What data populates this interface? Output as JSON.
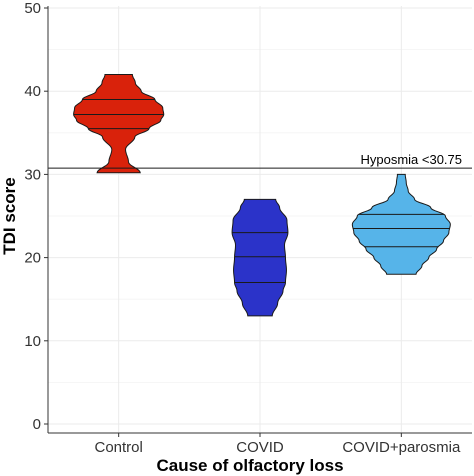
{
  "chart_data": {
    "type": "violin",
    "title": "",
    "xlabel": "Cause of olfactory loss",
    "ylabel": "TDI score",
    "ylim": [
      0,
      50
    ],
    "yticks": [
      0,
      10,
      20,
      30,
      40,
      50
    ],
    "grid": true,
    "legend": "none",
    "reference_line": {
      "value": 30.75,
      "label": "Hyposmia <30.75"
    },
    "series": [
      {
        "category": "Control",
        "color": "#d9220b",
        "min": 30.2,
        "max": 42,
        "quantiles": [
          35.5,
          37.2,
          39
        ],
        "density": [
          [
            30.2,
            0.44
          ],
          [
            31.5,
            0.2
          ],
          [
            33.0,
            0.14
          ],
          [
            34.5,
            0.33
          ],
          [
            35.5,
            0.62
          ],
          [
            36.5,
            0.86
          ],
          [
            37.2,
            0.92
          ],
          [
            38.0,
            0.9
          ],
          [
            39.0,
            0.74
          ],
          [
            40.0,
            0.46
          ],
          [
            41.0,
            0.34
          ],
          [
            42.0,
            0.28
          ]
        ]
      },
      {
        "category": "COVID",
        "color": "#2b33c9",
        "min": 13,
        "max": 27,
        "quantiles": [
          17,
          20.1,
          23
        ],
        "density": [
          [
            13,
            0.25
          ],
          [
            14.5,
            0.36
          ],
          [
            16.0,
            0.47
          ],
          [
            17.0,
            0.52
          ],
          [
            18.5,
            0.54
          ],
          [
            20.0,
            0.52
          ],
          [
            21.5,
            0.5
          ],
          [
            23.0,
            0.57
          ],
          [
            24.5,
            0.55
          ],
          [
            26.0,
            0.4
          ],
          [
            27.0,
            0.32
          ]
        ]
      },
      {
        "category": "COVID+parosmia",
        "color": "#56b4e9",
        "min": 18,
        "max": 30,
        "quantiles": [
          21.3,
          23.5,
          25.2
        ],
        "density": [
          [
            18,
            0.3
          ],
          [
            19.0,
            0.42
          ],
          [
            20.0,
            0.56
          ],
          [
            21.0,
            0.72
          ],
          [
            22.0,
            0.86
          ],
          [
            23.0,
            0.97
          ],
          [
            24.0,
            1.0
          ],
          [
            25.0,
            0.9
          ],
          [
            26.0,
            0.6
          ],
          [
            27.0,
            0.27
          ],
          [
            28.0,
            0.14
          ],
          [
            29.0,
            0.1
          ],
          [
            30.0,
            0.08
          ]
        ]
      }
    ]
  }
}
